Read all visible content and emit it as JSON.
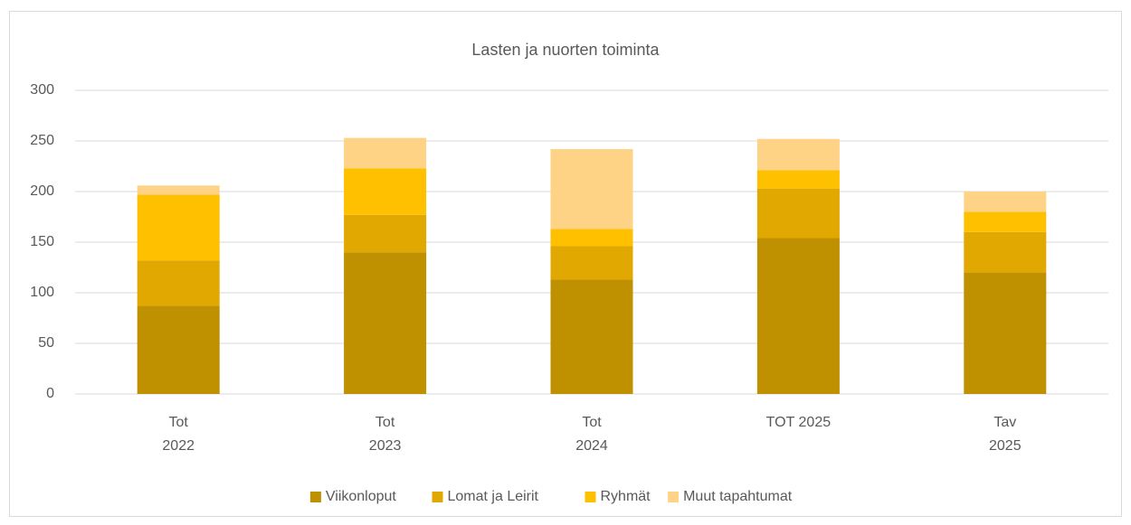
{
  "chart_data": {
    "type": "stacked_bar",
    "title": "Lasten ja nuorten toiminta",
    "categories": [
      "Tot\n2022",
      "Tot\n2023",
      "Tot\n2024",
      "TOT 2025",
      "Tav\n2025"
    ],
    "series": [
      {
        "name": "Viikonloput",
        "color": "#bf9000",
        "values": [
          87,
          140,
          113,
          154,
          120
        ]
      },
      {
        "name": "Lomat ja Leirit",
        "color": "#e0a800",
        "values": [
          45,
          37,
          33,
          49,
          40
        ]
      },
      {
        "name": "Ryhmät",
        "color": "#ffc000",
        "values": [
          65,
          46,
          17,
          18,
          20
        ]
      },
      {
        "name": "Muut tapahtumat",
        "color": "#ffd386",
        "values": [
          9,
          30,
          79,
          31,
          20
        ]
      }
    ],
    "ylim": [
      0,
      300
    ],
    "yticks": [
      0,
      50,
      100,
      150,
      200,
      250,
      300
    ],
    "grid": true,
    "legend": "bottom"
  }
}
